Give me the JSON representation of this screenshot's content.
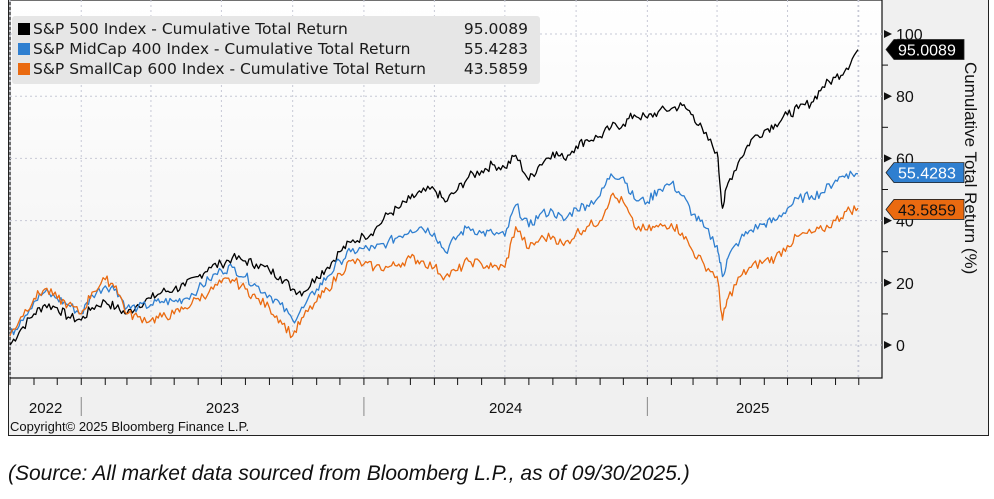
{
  "chart_data": {
    "type": "line",
    "title": "",
    "ylabel": "Cumulative Total Return (%)",
    "xlabel": "",
    "ylim": [
      -5,
      110
    ],
    "yticks": [
      0,
      20,
      40,
      60,
      80,
      100
    ],
    "ytick_labels": [
      "0",
      "20",
      "40",
      "60",
      "80",
      "100"
    ],
    "xlim": [
      "2022-10-01",
      "2025-09-30"
    ],
    "year_labels": [
      "2022",
      "2023",
      "2024",
      "2025"
    ],
    "grid": true,
    "legend_position": "top-left",
    "x": [
      "2022-10-01",
      "2022-10-15",
      "2022-11-01",
      "2022-11-15",
      "2022-12-01",
      "2022-12-15",
      "2023-01-01",
      "2023-01-15",
      "2023-02-01",
      "2023-02-15",
      "2023-03-01",
      "2023-03-15",
      "2023-04-01",
      "2023-04-15",
      "2023-05-01",
      "2023-05-15",
      "2023-06-01",
      "2023-06-15",
      "2023-07-01",
      "2023-07-15",
      "2023-08-01",
      "2023-08-15",
      "2023-09-01",
      "2023-09-15",
      "2023-10-01",
      "2023-10-15",
      "2023-11-01",
      "2023-11-15",
      "2023-12-01",
      "2023-12-15",
      "2024-01-01",
      "2024-01-15",
      "2024-02-01",
      "2024-02-15",
      "2024-03-01",
      "2024-03-15",
      "2024-04-01",
      "2024-04-15",
      "2024-05-01",
      "2024-05-15",
      "2024-06-01",
      "2024-06-15",
      "2024-07-01",
      "2024-07-15",
      "2024-08-01",
      "2024-08-15",
      "2024-09-01",
      "2024-09-15",
      "2024-10-01",
      "2024-10-15",
      "2024-11-01",
      "2024-11-15",
      "2024-12-01",
      "2024-12-15",
      "2025-01-01",
      "2025-01-15",
      "2025-02-01",
      "2025-02-15",
      "2025-03-01",
      "2025-03-15",
      "2025-04-01",
      "2025-04-08",
      "2025-04-15",
      "2025-05-01",
      "2025-05-15",
      "2025-06-01",
      "2025-06-15",
      "2025-07-01",
      "2025-07-15",
      "2025-08-01",
      "2025-08-15",
      "2025-09-01",
      "2025-09-15",
      "2025-09-30"
    ],
    "series": [
      {
        "name": "S&P 500 Index - Cumulative Total Return",
        "last_value": "95.0089",
        "color": "#000000",
        "values": [
          0,
          5,
          10,
          13,
          12,
          9,
          8,
          12,
          14,
          12,
          10,
          13,
          15,
          17,
          18,
          19,
          22,
          25,
          26,
          28,
          27,
          26,
          24,
          22,
          18,
          17,
          22,
          25,
          30,
          33,
          35,
          37,
          42,
          44,
          47,
          49,
          50,
          46,
          50,
          54,
          56,
          58,
          57,
          61,
          53,
          58,
          62,
          60,
          64,
          66,
          67,
          70,
          71,
          74,
          73,
          75,
          76,
          77,
          74,
          68,
          62,
          44,
          52,
          60,
          66,
          69,
          71,
          74,
          76,
          78,
          83,
          86,
          89,
          95
        ]
      },
      {
        "name": "S&P MidCap 400 Index - Cumulative Total Return",
        "last_value": "55.4283",
        "color": "#2f7fd0",
        "values": [
          3,
          8,
          14,
          17,
          15,
          13,
          10,
          16,
          19,
          18,
          12,
          12,
          13,
          14,
          14,
          15,
          18,
          21,
          24,
          25,
          22,
          19,
          16,
          13,
          8,
          12,
          18,
          22,
          27,
          30,
          31,
          31,
          33,
          35,
          37,
          38,
          36,
          30,
          35,
          38,
          36,
          36,
          35,
          45,
          38,
          42,
          43,
          40,
          44,
          45,
          48,
          55,
          54,
          47,
          46,
          50,
          52,
          48,
          42,
          38,
          32,
          22,
          28,
          34,
          37,
          39,
          40,
          44,
          47,
          48,
          49,
          53,
          55,
          55
        ]
      },
      {
        "name": "S&P SmallCap 600 Index - Cumulative Total Return",
        "last_value": "43.5859",
        "color": "#ea6a10",
        "values": [
          3,
          9,
          15,
          18,
          15,
          13,
          10,
          17,
          21,
          19,
          10,
          9,
          8,
          9,
          10,
          12,
          15,
          17,
          20,
          21,
          18,
          15,
          12,
          8,
          3,
          9,
          14,
          18,
          23,
          27,
          26,
          25,
          25,
          26,
          28,
          27,
          25,
          22,
          24,
          27,
          26,
          25,
          25,
          38,
          31,
          34,
          35,
          32,
          36,
          38,
          40,
          48,
          46,
          38,
          37,
          38,
          39,
          36,
          30,
          26,
          22,
          8,
          15,
          22,
          25,
          27,
          28,
          32,
          35,
          36,
          37,
          40,
          43,
          44
        ]
      }
    ],
    "label_boxes": [
      {
        "text": "95.0089",
        "color": "#000000",
        "text_color": "#ffffff"
      },
      {
        "text": "55.4283",
        "color": "#2f7fd0",
        "text_color": "#ffffff"
      },
      {
        "text": "43.5859",
        "color": "#ea6a10",
        "text_color": "#111111"
      }
    ]
  },
  "legend": {
    "items": [
      {
        "label": "S&P 500 Index - Cumulative Total Return",
        "value": "95.0089",
        "color": "#000000"
      },
      {
        "label": "S&P MidCap 400 Index - Cumulative Total Return",
        "value": "55.4283",
        "color": "#2f7fd0"
      },
      {
        "label": "S&P SmallCap 600 Index - Cumulative Total Return",
        "value": "43.5859",
        "color": "#ea6a10"
      }
    ]
  },
  "copyright": "Copyright© 2025 Bloomberg Finance L.P.",
  "source_note": "(Source: All market data sourced from Bloomberg L.P., as of 09/30/2025.)"
}
